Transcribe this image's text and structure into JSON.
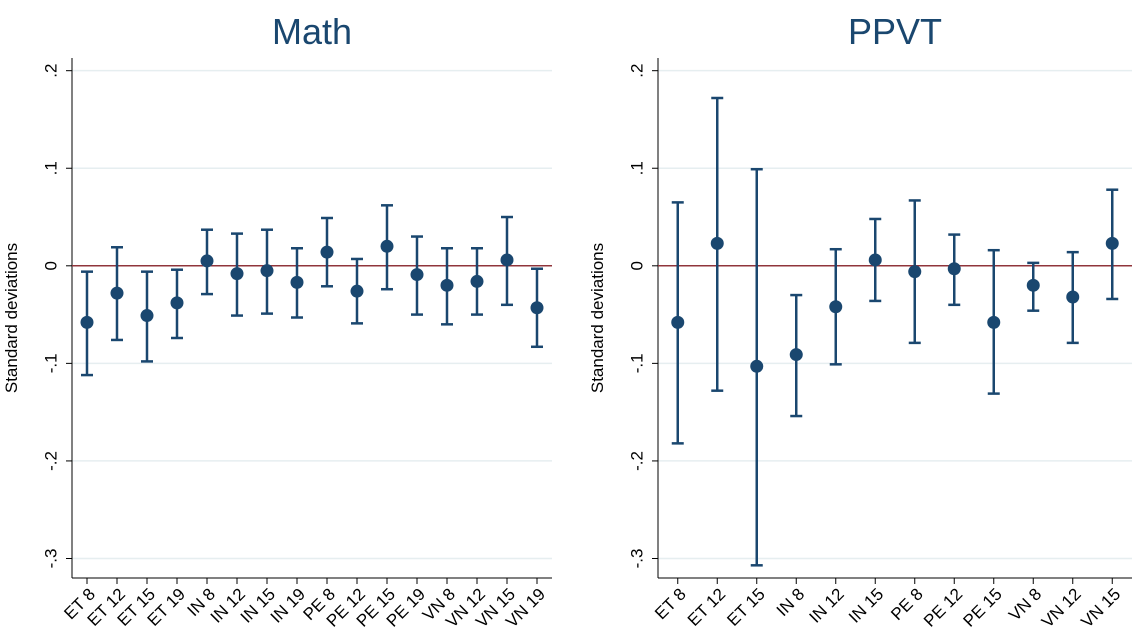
{
  "chart_data": [
    {
      "type": "errorbar",
      "title": "Math",
      "y_label": "Standard deviations",
      "categories": [
        "ET 8",
        "ET 12",
        "ET 15",
        "ET 19",
        "IN 8",
        "IN 12",
        "IN 15",
        "IN 19",
        "PE 8",
        "PE 12",
        "PE 15",
        "PE 19",
        "VN 8",
        "VN 12",
        "VN 15",
        "VN 19"
      ],
      "values": [
        -0.058,
        -0.028,
        -0.051,
        -0.038,
        0.005,
        -0.008,
        -0.005,
        -0.017,
        0.014,
        -0.026,
        0.02,
        -0.009,
        -0.02,
        -0.016,
        0.006,
        -0.043
      ],
      "lower": [
        -0.112,
        -0.076,
        -0.098,
        -0.074,
        -0.029,
        -0.051,
        -0.049,
        -0.053,
        -0.021,
        -0.059,
        -0.024,
        -0.05,
        -0.06,
        -0.05,
        -0.04,
        -0.083
      ],
      "upper": [
        -0.006,
        0.019,
        -0.006,
        -0.004,
        0.037,
        0.033,
        0.037,
        0.018,
        0.049,
        0.007,
        0.062,
        0.03,
        0.018,
        0.018,
        0.05,
        -0.003
      ],
      "color": "#1a476f",
      "refline": 0,
      "refline_color": "#90353b",
      "ylim": [
        -0.32,
        0.213
      ],
      "yticks": [
        {
          "value": 0.2,
          "label": ".2"
        },
        {
          "value": 0.1,
          "label": ".1"
        },
        0,
        {
          "value": -0.1,
          "label": "-.1"
        },
        {
          "value": -0.2,
          "label": "-.2"
        },
        {
          "value": -0.3,
          "label": "-.3"
        }
      ],
      "grid": true
    },
    {
      "type": "errorbar",
      "title": "PPVT",
      "y_label": "Standard deviations",
      "categories": [
        "ET 8",
        "ET 12",
        "ET 15",
        "IN 8",
        "IN 12",
        "IN 15",
        "PE 8",
        "PE 12",
        "PE 15",
        "VN 8",
        "VN 12",
        "VN 15"
      ],
      "values": [
        -0.058,
        0.023,
        -0.103,
        -0.091,
        -0.042,
        0.006,
        -0.006,
        -0.003,
        -0.058,
        -0.02,
        -0.032,
        0.023
      ],
      "lower": [
        -0.182,
        -0.128,
        -0.307,
        -0.154,
        -0.101,
        -0.036,
        -0.079,
        -0.04,
        -0.131,
        -0.046,
        -0.079,
        -0.034
      ],
      "upper": [
        0.065,
        0.172,
        0.099,
        -0.03,
        0.017,
        0.048,
        0.067,
        0.032,
        0.016,
        0.003,
        0.014,
        0.078
      ],
      "color": "#1a476f",
      "refline": 0,
      "refline_color": "#90353b",
      "ylim": [
        -0.32,
        0.213
      ],
      "yticks": [
        {
          "value": 0.2,
          "label": ".2"
        },
        {
          "value": 0.1,
          "label": ".1"
        },
        0,
        {
          "value": -0.1,
          "label": "-.1"
        },
        {
          "value": -0.2,
          "label": "-.2"
        },
        {
          "value": -0.3,
          "label": "-.3"
        }
      ],
      "grid": true
    }
  ]
}
